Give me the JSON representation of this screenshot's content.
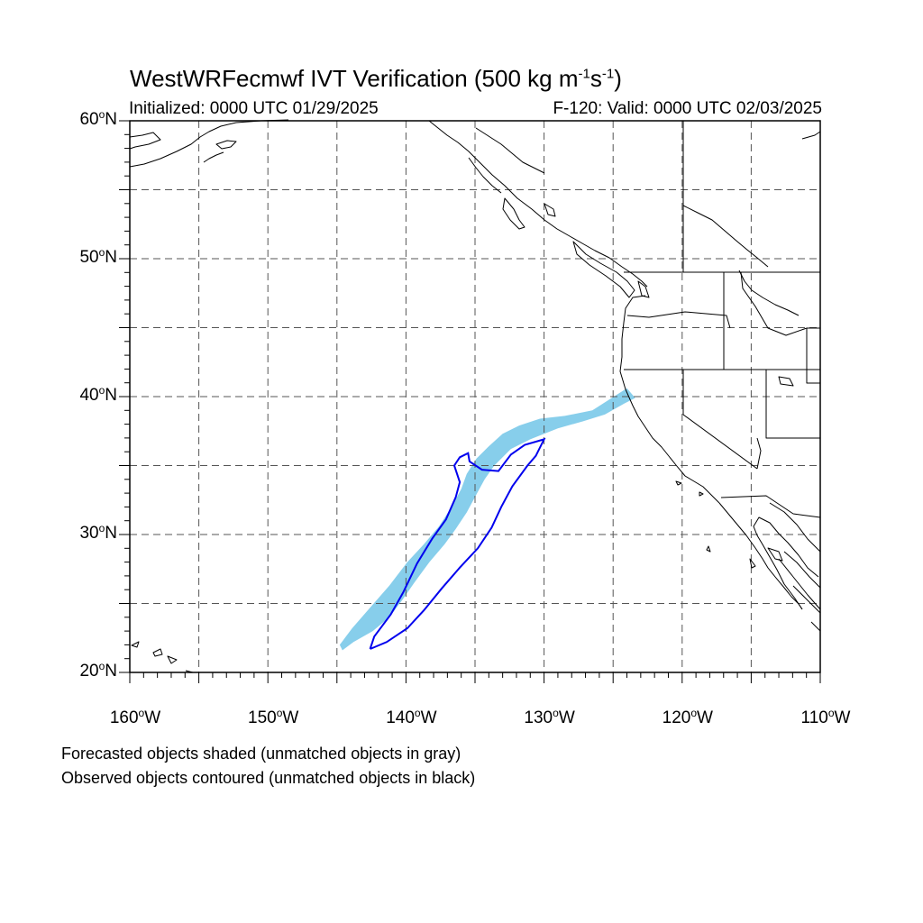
{
  "title": {
    "prefix": "WestWRFecmwf IVT Verification (500 kg m",
    "exp1": "-1",
    "mid": "s",
    "exp2": "-1",
    "suffix": ")"
  },
  "initialized": "Initialized: 0000 UTC 01/29/2025",
  "valid": "F-120: Valid: 0000 UTC 02/03/2025",
  "map_extent": {
    "lon": [
      -160,
      -110
    ],
    "lat": [
      20,
      60
    ]
  },
  "lat_labels": [
    "60",
    "50",
    "40",
    "30",
    "20"
  ],
  "lat_suffix": "N",
  "lon_labels": [
    "160",
    "150",
    "140",
    "130",
    "120",
    "110"
  ],
  "lon_suffix": "W",
  "degree_symbol": "o",
  "notes": [
    "Forecasted objects shaded (unmatched objects in gray)",
    "Observed objects contoured (unmatched objects in black)"
  ],
  "colors": {
    "forecast_fill": "#87ceeb",
    "observed_contour": "#0000ee",
    "grid": "#555555",
    "coast": "#000000"
  },
  "forecast_object_lonlat": [
    [
      -144.6,
      21.6
    ],
    [
      -143.8,
      22.2
    ],
    [
      -142.4,
      23.0
    ],
    [
      -141.2,
      24.0
    ],
    [
      -140.3,
      25.2
    ],
    [
      -139.4,
      26.5
    ],
    [
      -138.3,
      28.0
    ],
    [
      -137.2,
      29.3
    ],
    [
      -136.4,
      30.4
    ],
    [
      -135.6,
      31.6
    ],
    [
      -134.9,
      32.9
    ],
    [
      -134.3,
      34.0
    ],
    [
      -133.6,
      35.0
    ],
    [
      -132.4,
      36.2
    ],
    [
      -131.0,
      36.9
    ],
    [
      -129.0,
      37.7
    ],
    [
      -127.2,
      38.2
    ],
    [
      -125.6,
      38.7
    ],
    [
      -124.2,
      39.5
    ],
    [
      -123.4,
      39.9
    ],
    [
      -124.0,
      40.6
    ],
    [
      -126.5,
      39.0
    ],
    [
      -128.5,
      38.6
    ],
    [
      -130.3,
      38.4
    ],
    [
      -131.8,
      37.9
    ],
    [
      -133.0,
      37.3
    ],
    [
      -134.0,
      36.4
    ],
    [
      -134.9,
      35.5
    ],
    [
      -135.6,
      34.4
    ],
    [
      -136.0,
      33.3
    ],
    [
      -136.7,
      32.0
    ],
    [
      -137.6,
      30.6
    ],
    [
      -138.7,
      29.3
    ],
    [
      -139.9,
      28.0
    ],
    [
      -141.2,
      26.3
    ],
    [
      -142.6,
      24.7
    ],
    [
      -143.9,
      23.2
    ],
    [
      -144.8,
      22.0
    ]
  ],
  "observed_object_lonlat": [
    [
      -142.6,
      21.7
    ],
    [
      -141.4,
      22.2
    ],
    [
      -139.9,
      23.2
    ],
    [
      -138.7,
      24.5
    ],
    [
      -137.4,
      26.1
    ],
    [
      -136.1,
      27.6
    ],
    [
      -134.8,
      29.0
    ],
    [
      -133.8,
      30.5
    ],
    [
      -133.1,
      32.0
    ],
    [
      -132.3,
      33.5
    ],
    [
      -131.2,
      35.0
    ],
    [
      -130.6,
      35.7
    ],
    [
      -130.0,
      36.9
    ],
    [
      -131.4,
      36.5
    ],
    [
      -132.4,
      35.8
    ],
    [
      -133.3,
      34.6
    ],
    [
      -134.5,
      34.7
    ],
    [
      -135.4,
      35.3
    ],
    [
      -135.5,
      35.9
    ],
    [
      -136.1,
      35.6
    ],
    [
      -136.5,
      35.0
    ],
    [
      -136.1,
      33.8
    ],
    [
      -136.4,
      32.7
    ],
    [
      -137.1,
      31.1
    ],
    [
      -138.1,
      29.7
    ],
    [
      -139.2,
      27.9
    ],
    [
      -140.2,
      25.8
    ],
    [
      -141.1,
      24.2
    ],
    [
      -142.3,
      22.6
    ],
    [
      -142.6,
      21.7
    ]
  ]
}
